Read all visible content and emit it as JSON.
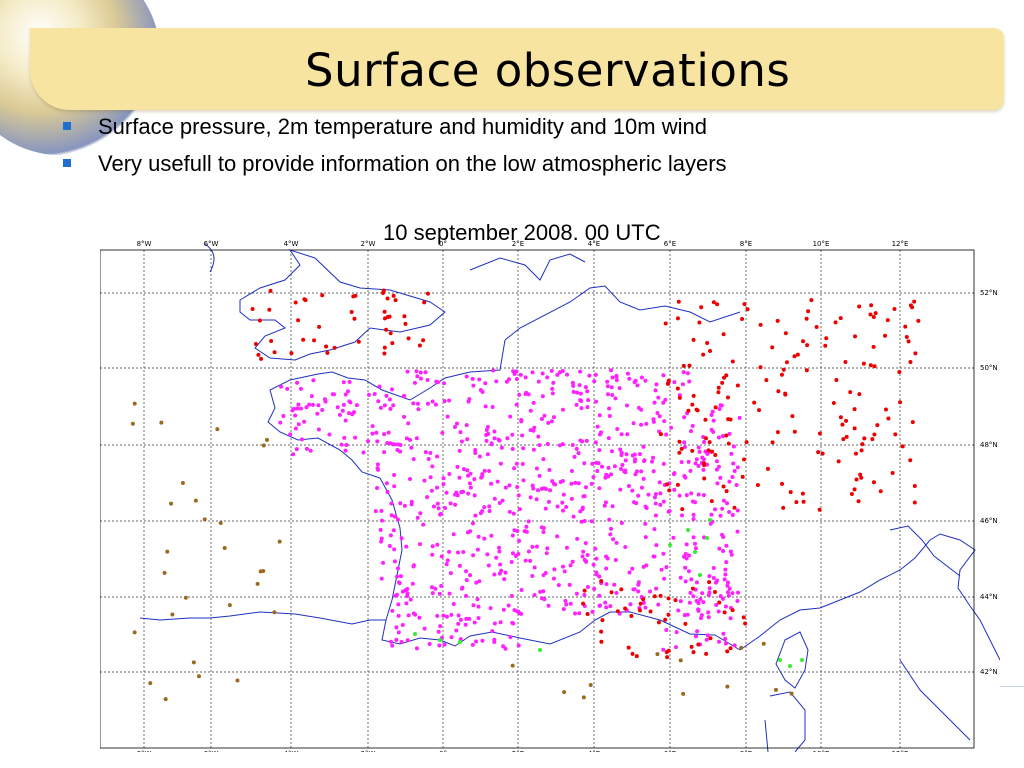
{
  "slide": {
    "title": "Surface observations",
    "bullets": [
      "Surface pressure, 2m temperature and humidity and 10m wind",
      "Very usefull to provide information on the low atmospheric layers"
    ],
    "map_caption": "10 september 2008. 00 UTC"
  },
  "map": {
    "lon_labels": [
      "8°W",
      "6°W",
      "4°W",
      "2°W",
      "0°",
      "2°E",
      "4°E",
      "6°E",
      "8°E",
      "10°E",
      "12°E"
    ],
    "lat_labels": [
      "52°N",
      "50°N",
      "48°N",
      "46°N",
      "44°N",
      "42°N"
    ],
    "colors": {
      "magenta_obs": "#ff22ff",
      "red_obs": "#ee0000",
      "brown_obs": "#9a6a1e",
      "green_obs": "#33ee33",
      "coastline": "#2030c0"
    }
  }
}
